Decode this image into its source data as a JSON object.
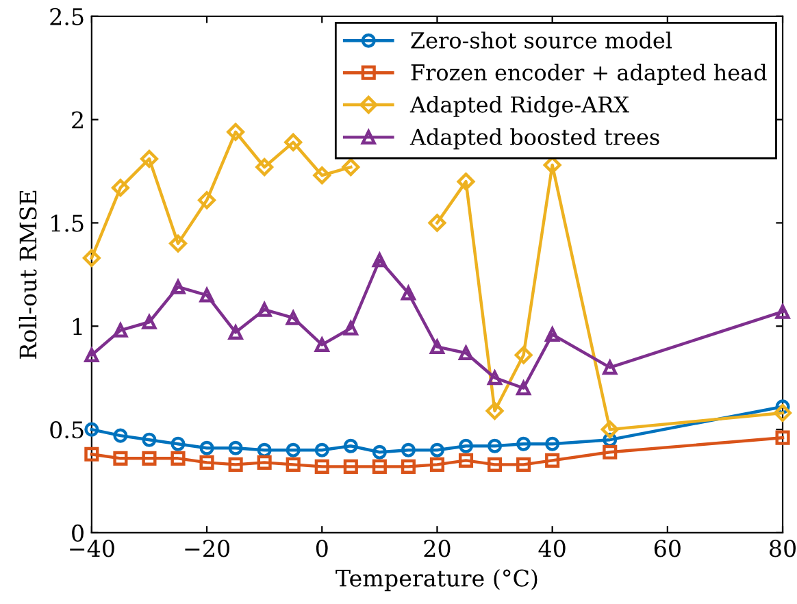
{
  "chart_data": {
    "type": "line",
    "xlabel": "Temperature (°C)",
    "ylabel": "Roll-out RMSE",
    "x": [
      -40,
      -35,
      -30,
      -25,
      -20,
      -15,
      -10,
      -5,
      0,
      5,
      10,
      15,
      20,
      25,
      30,
      35,
      40,
      50,
      80
    ],
    "series": [
      {
        "name": "Zero-shot source model",
        "color": "#0072bd",
        "marker": "circle",
        "values": [
          0.5,
          0.47,
          0.45,
          0.43,
          0.41,
          0.41,
          0.4,
          0.4,
          0.4,
          0.42,
          0.39,
          0.4,
          0.4,
          0.42,
          0.42,
          0.43,
          0.43,
          0.45,
          0.61
        ]
      },
      {
        "name": "Frozen encoder + adapted head",
        "color": "#d95319",
        "marker": "square",
        "values": [
          0.38,
          0.36,
          0.36,
          0.36,
          0.34,
          0.33,
          0.34,
          0.33,
          0.32,
          0.32,
          0.32,
          0.32,
          0.33,
          0.35,
          0.33,
          0.33,
          0.35,
          0.39,
          0.46
        ]
      },
      {
        "name": "Adapted Ridge-ARX",
        "color": "#edb120",
        "marker": "diamond",
        "values": [
          1.33,
          1.67,
          1.81,
          1.4,
          1.61,
          1.94,
          1.77,
          1.89,
          1.73,
          1.77,
          null,
          null,
          1.5,
          1.7,
          0.59,
          0.86,
          1.78,
          0.5,
          0.58
        ]
      },
      {
        "name": "Adapted boosted trees",
        "color": "#7e2f8e",
        "marker": "triangle",
        "values": [
          0.86,
          0.98,
          1.02,
          1.19,
          1.15,
          0.97,
          1.08,
          1.04,
          0.91,
          0.99,
          1.32,
          1.16,
          0.9,
          0.87,
          0.75,
          0.7,
          0.96,
          0.8,
          1.07
        ]
      }
    ],
    "xlim": [
      -40,
      80
    ],
    "xticks": [
      {
        "value": -40,
        "label": "−40"
      },
      {
        "value": -20,
        "label": "−20"
      },
      0,
      20,
      40,
      60,
      80
    ],
    "ylim": [
      0,
      2.5
    ],
    "yticks": [
      0,
      0.5,
      1,
      1.5,
      2,
      2.5
    ],
    "legend": "top right",
    "grid": false,
    "line_style": "solid"
  }
}
